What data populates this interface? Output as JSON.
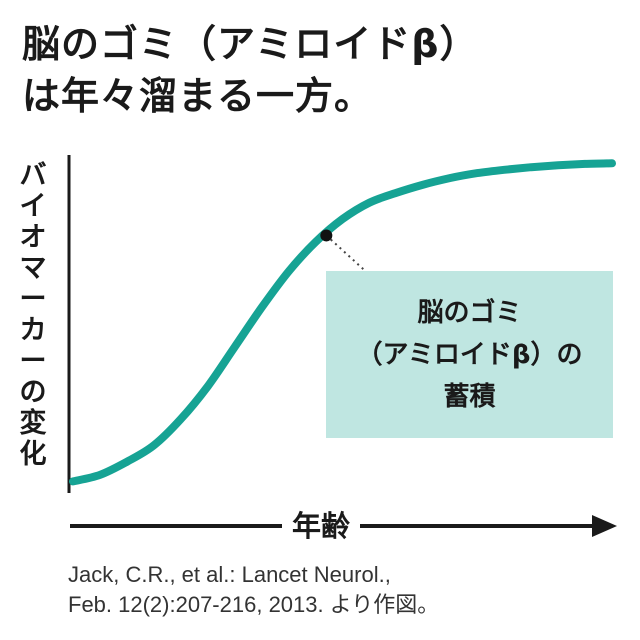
{
  "chart_data": {
    "type": "line",
    "title_lines": [
      "脳のゴミ（アミロイドβ）",
      "は年々溜まる一方。"
    ],
    "ylabel_chars": [
      "バ",
      "イ",
      "オ",
      "マ",
      "ー",
      "カ",
      "ー",
      "の",
      "変",
      "化"
    ],
    "xlabel": "年齢",
    "series": [
      {
        "x": [
          0,
          5,
          10,
          15,
          20,
          25,
          30,
          35,
          40,
          45,
          50,
          55,
          60,
          65,
          70,
          75,
          80,
          85,
          90,
          95,
          100
        ],
        "y": [
          2,
          4,
          8,
          13,
          21,
          31,
          43,
          55,
          66,
          75,
          82,
          87,
          90,
          92.5,
          94.5,
          96,
          97,
          97.8,
          98.4,
          98.8,
          99
        ]
      }
    ],
    "xlim": [
      0,
      100
    ],
    "ylim": [
      0,
      100
    ],
    "highlight_point": {
      "x": 47,
      "y": 77
    },
    "callout_lines": [
      "脳のゴミ",
      "（アミロイドβ）の",
      "蓄積"
    ],
    "line_color": "#16a394",
    "callout_color": "#bfe6e1"
  },
  "source_lines": [
    "Jack, C.R., et al.: Lancet Neurol.,",
    "Feb. 12(2):207-216, 2013. より作図。"
  ]
}
